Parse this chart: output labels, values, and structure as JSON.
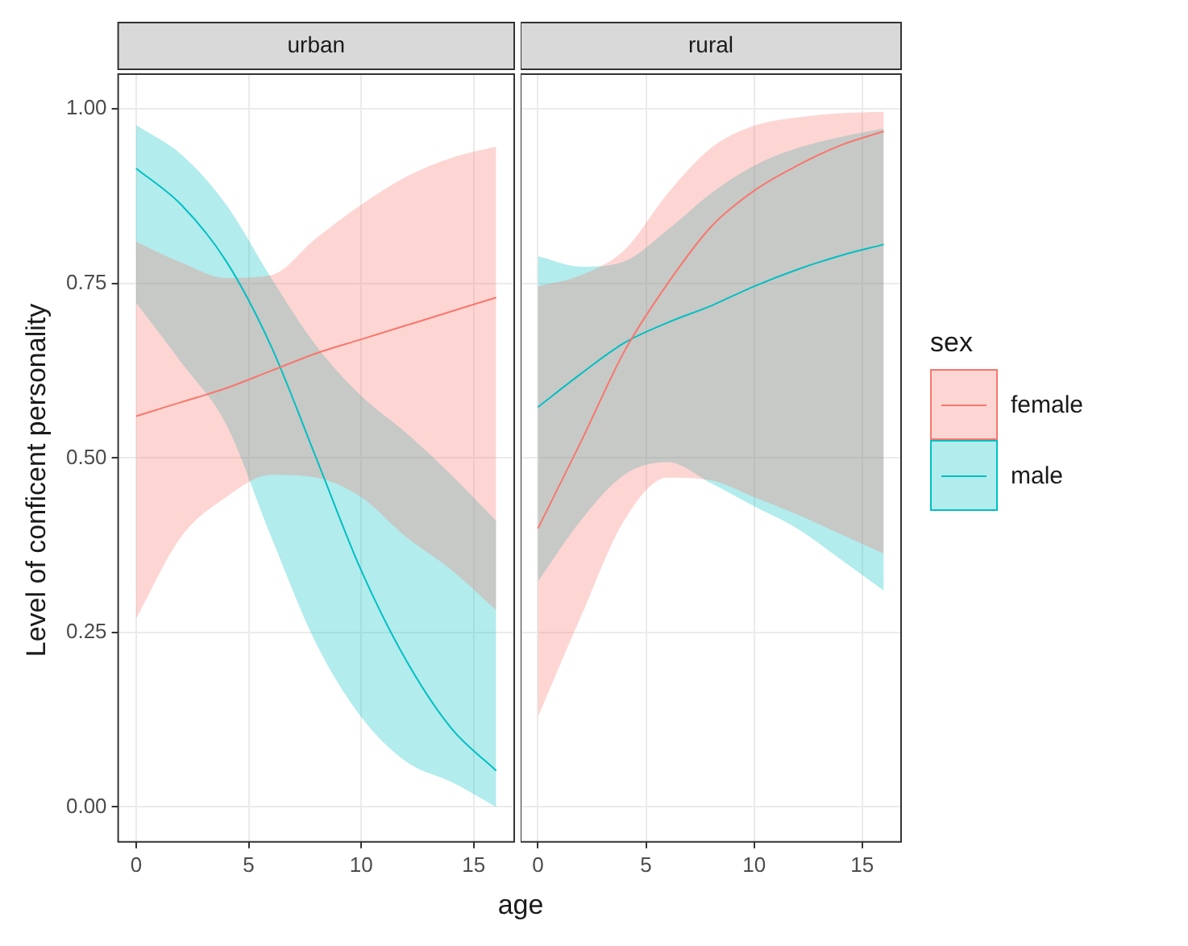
{
  "chart_data": [
    {
      "type": "line",
      "title": "urban",
      "xlabel": "age",
      "ylabel": "Level of conficent personality",
      "x": [
        0,
        2,
        4,
        6,
        8,
        10,
        12,
        14,
        16
      ],
      "xlim": [
        -0.8,
        16.8
      ],
      "xticks": [
        0,
        5,
        10,
        15
      ],
      "ylim": [
        -0.05,
        1.05
      ],
      "yticks": [
        {
          "value": 0,
          "label": "0.00"
        },
        {
          "value": 0.25,
          "label": "0.25"
        },
        {
          "value": 0.5,
          "label": "0.50"
        },
        {
          "value": 0.75,
          "label": "0.75"
        },
        {
          "value": 1,
          "label": "1.00"
        }
      ],
      "grid": true,
      "legend": "right",
      "legend_title": "sex",
      "series": [
        {
          "name": "female",
          "color": "#f8766d",
          "values": [
            0.56,
            0.58,
            0.6,
            0.625,
            0.65,
            0.67,
            0.69,
            0.71,
            0.73
          ],
          "lower": [
            0.27,
            0.387,
            0.444,
            0.476,
            0.472,
            0.444,
            0.387,
            0.34,
            0.282
          ],
          "upper": [
            0.81,
            0.78,
            0.758,
            0.762,
            0.815,
            0.863,
            0.903,
            0.93,
            0.946
          ]
        },
        {
          "name": "male",
          "color": "#00bfc4",
          "values": [
            0.915,
            0.863,
            0.782,
            0.66,
            0.5,
            0.339,
            0.21,
            0.113,
            0.052
          ],
          "lower": [
            0.722,
            0.637,
            0.548,
            0.387,
            0.234,
            0.129,
            0.065,
            0.036,
            0.0
          ],
          "upper": [
            0.977,
            0.935,
            0.863,
            0.758,
            0.661,
            0.589,
            0.536,
            0.476,
            0.41
          ]
        }
      ]
    },
    {
      "type": "line",
      "title": "rural",
      "x": [
        0,
        2,
        4,
        6,
        8,
        10,
        12,
        14,
        16
      ],
      "xlim": [
        -0.8,
        16.8
      ],
      "xticks": [
        0,
        5,
        10,
        15
      ],
      "ylim": [
        -0.05,
        1.05
      ],
      "yticks": [
        0,
        0.25,
        0.5,
        0.75,
        1
      ],
      "grid": true,
      "tick_labels": "x",
      "series": [
        {
          "name": "female",
          "color": "#f8766d",
          "values": [
            0.399,
            0.524,
            0.653,
            0.75,
            0.831,
            0.883,
            0.919,
            0.948,
            0.968
          ],
          "lower": [
            0.129,
            0.274,
            0.411,
            0.472,
            0.468,
            0.444,
            0.419,
            0.391,
            0.363
          ],
          "upper": [
            0.746,
            0.762,
            0.798,
            0.879,
            0.944,
            0.976,
            0.988,
            0.994,
            0.996
          ]
        },
        {
          "name": "male",
          "color": "#00bfc4",
          "values": [
            0.573,
            0.621,
            0.665,
            0.694,
            0.718,
            0.746,
            0.77,
            0.79,
            0.806
          ],
          "lower": [
            0.323,
            0.411,
            0.476,
            0.494,
            0.464,
            0.431,
            0.399,
            0.355,
            0.31
          ],
          "upper": [
            0.789,
            0.774,
            0.782,
            0.827,
            0.879,
            0.919,
            0.944,
            0.96,
            0.972
          ]
        }
      ]
    }
  ]
}
